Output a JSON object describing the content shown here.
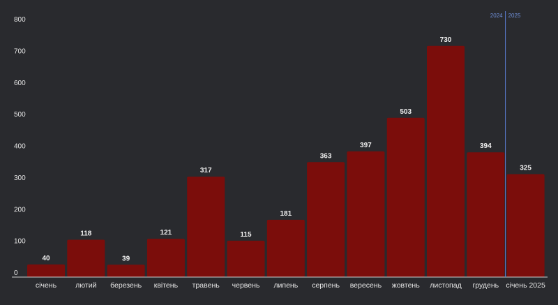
{
  "chart_data": {
    "type": "bar",
    "categories": [
      "січень",
      "лютий",
      "березень",
      "квітень",
      "травень",
      "червень",
      "липень",
      "серпень",
      "вересень",
      "жовтень",
      "листопад",
      "грудень",
      "січень 2025"
    ],
    "values": [
      40,
      118,
      39,
      121,
      317,
      115,
      181,
      363,
      397,
      503,
      730,
      394,
      325
    ],
    "ylim": [
      0,
      800
    ],
    "yticks": [
      0,
      100,
      200,
      300,
      400,
      500,
      600,
      700,
      800
    ],
    "grid": false,
    "bar_color": "#7b0d0b",
    "background": "#292a2e",
    "divider": {
      "after_category": "грудень",
      "left_label": "2024",
      "right_label": "2025",
      "color": "#5b7fd6"
    }
  }
}
